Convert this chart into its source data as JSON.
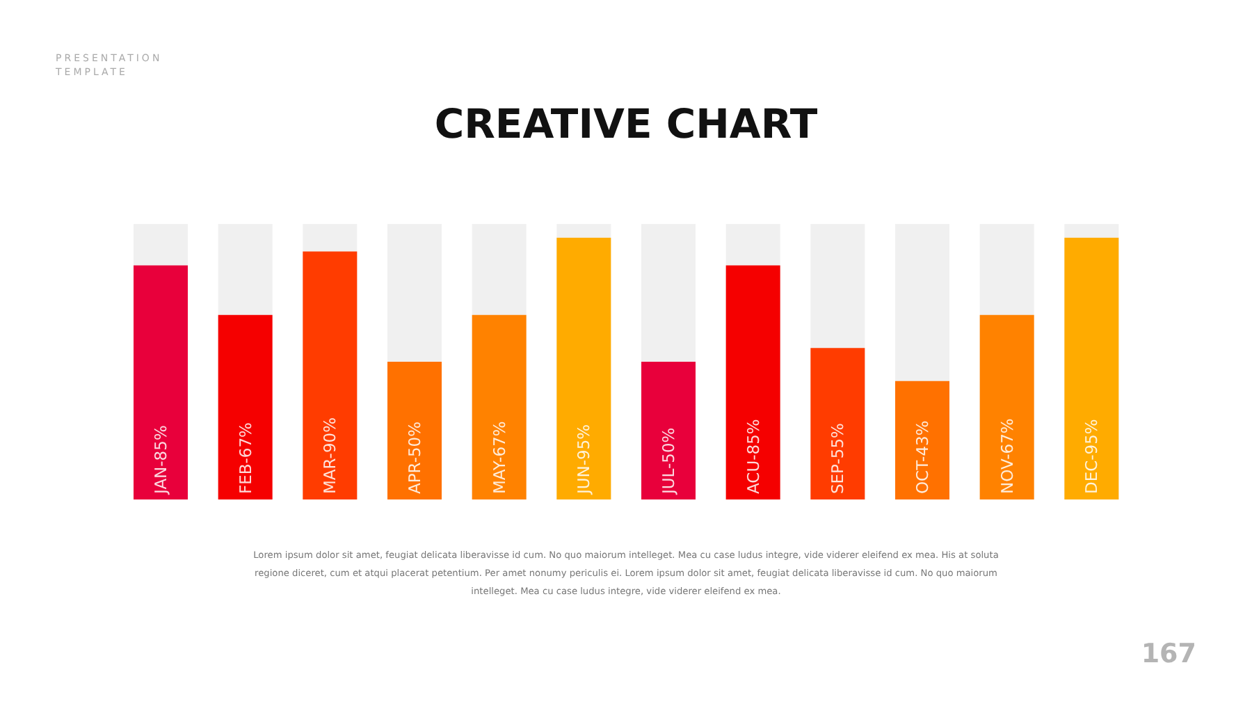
{
  "chart_data": {
    "type": "bar",
    "title": "CREATIVE CHART",
    "categories": [
      "JAN-",
      "FEB-",
      "MAR-",
      "APR-",
      "MAY-",
      "JUN-",
      "JUL-",
      "ACU-",
      "SEP-",
      "OCT-",
      "NOV-",
      "DEC-"
    ],
    "values": [
      85,
      67,
      90,
      50,
      67,
      95,
      50,
      85,
      55,
      43,
      67,
      95
    ],
    "value_labels": [
      "85%",
      "67%",
      "90%",
      "50%",
      "67%",
      "95%",
      "50%",
      "85%",
      "55%",
      "43%",
      "67%",
      "95%"
    ],
    "colors": [
      "#e8003b",
      "#f50000",
      "#ff3c00",
      "#ff7100",
      "#ff8200",
      "#ffab00",
      "#e8003b",
      "#f50000",
      "#ff3c00",
      "#ff7100",
      "#ff8200",
      "#ffab00"
    ],
    "annotations": [
      "PRESENTATION TEMPLATE",
      "Lorem ipsum dolor sit amet, feugiat delicata liberavisse id cum. No quo maiorum intelleget. Mea cu case ludus integre, vide viderer eleifend ex mea. His at soluta regione diceret, cum et atqui placerat petentium. Per amet nonumy periculis ei. Lorem ipsum dolor sit amet, feugiat delicata liberavisse id cum. No quo maiorum intelleget. Mea cu case ludus integre, vide viderer eleifend ex mea.",
      "167"
    ]
  }
}
